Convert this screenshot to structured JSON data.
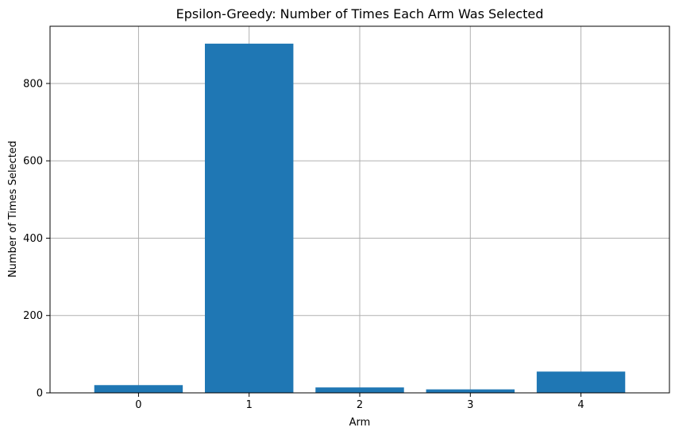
{
  "chart_data": {
    "type": "bar",
    "title": "Epsilon-Greedy: Number of Times Each Arm Was Selected",
    "xlabel": "Arm",
    "ylabel": "Number of Times Selected",
    "categories": [
      "0",
      "1",
      "2",
      "3",
      "4"
    ],
    "values": [
      20,
      903,
      14,
      9,
      55
    ],
    "ylim": [
      0,
      948
    ],
    "yticks": [
      0,
      200,
      400,
      600,
      800
    ],
    "grid": true,
    "bar_color": "#1f77b4",
    "grid_color": "#b0b0b0",
    "axis_color": "#000000"
  }
}
